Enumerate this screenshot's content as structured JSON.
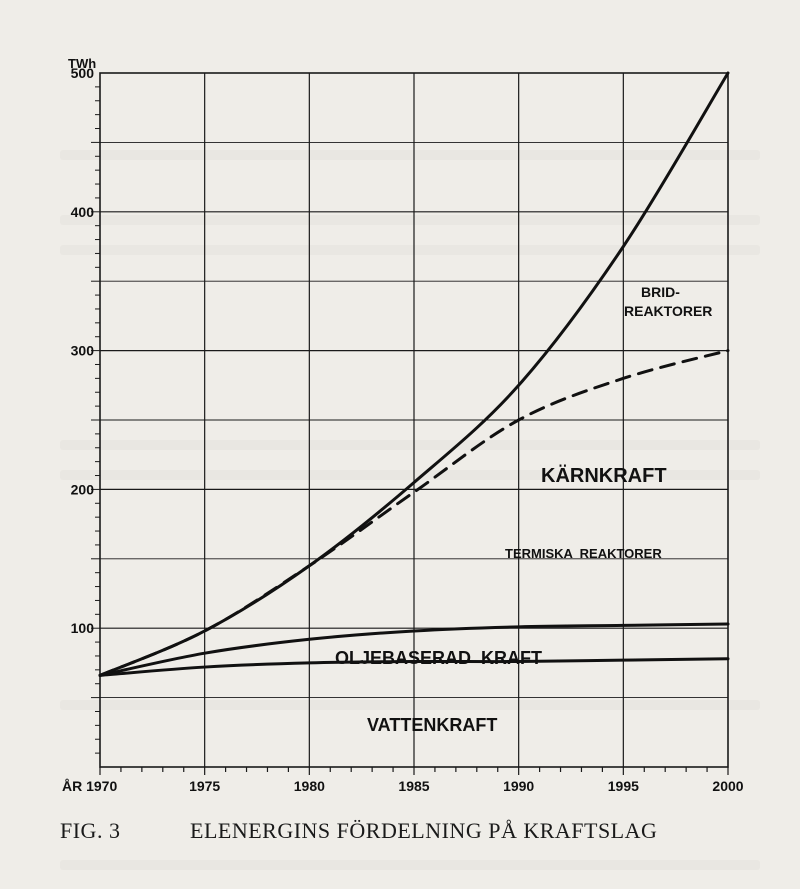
{
  "caption": {
    "fig_label": "FIG. 3",
    "title": "ELENERGINS FÖRDELNING PÅ KRAFTSLAG"
  },
  "chart_data": {
    "type": "line",
    "title": "",
    "ylabel": "TWh",
    "xlabel": "",
    "xlim": [
      1970,
      2000
    ],
    "ylim": [
      0,
      500
    ],
    "grid": true,
    "x_tick_labels": [
      "ÅR 1970",
      "1975",
      "1980",
      "1985",
      "1990",
      "1995",
      "2000"
    ],
    "y_ticks": [
      100,
      200,
      300,
      400,
      500
    ],
    "series": [
      {
        "name": "VATTENKRAFT",
        "style": "solid",
        "x": [
          1970,
          1975,
          1980,
          1985,
          1990,
          1995,
          2000
        ],
        "y": [
          66,
          72,
          75,
          76,
          76,
          77,
          78
        ]
      },
      {
        "name": "OLJEBASERAD KRAFT",
        "style": "solid",
        "x": [
          1970,
          1975,
          1980,
          1985,
          1990,
          1995,
          2000
        ],
        "y": [
          66,
          82,
          92,
          98,
          101,
          102,
          103
        ]
      },
      {
        "name": "KÄRNKRAFT — TERMISKA REAKTORER",
        "style": "dashed",
        "x": [
          1970,
          1975,
          1980,
          1985,
          1990,
          1995,
          2000
        ],
        "y": [
          66,
          98,
          145,
          198,
          250,
          280,
          300
        ]
      },
      {
        "name": "BRID- REAKTORER",
        "style": "solid",
        "x": [
          1970,
          1975,
          1980,
          1985,
          1990,
          1995,
          2000
        ],
        "y": [
          66,
          98,
          145,
          205,
          275,
          375,
          500
        ]
      }
    ],
    "annotations": {
      "brid_line1": "BRID-",
      "brid_line2": "REAKTORER",
      "karnkraft": "KÄRNKRAFT",
      "termiska": "TERMISKA  REAKTORER",
      "oljebaserad": "OLJEBASERAD  KRAFT",
      "vattenkraft": "VATTENKRAFT"
    }
  }
}
